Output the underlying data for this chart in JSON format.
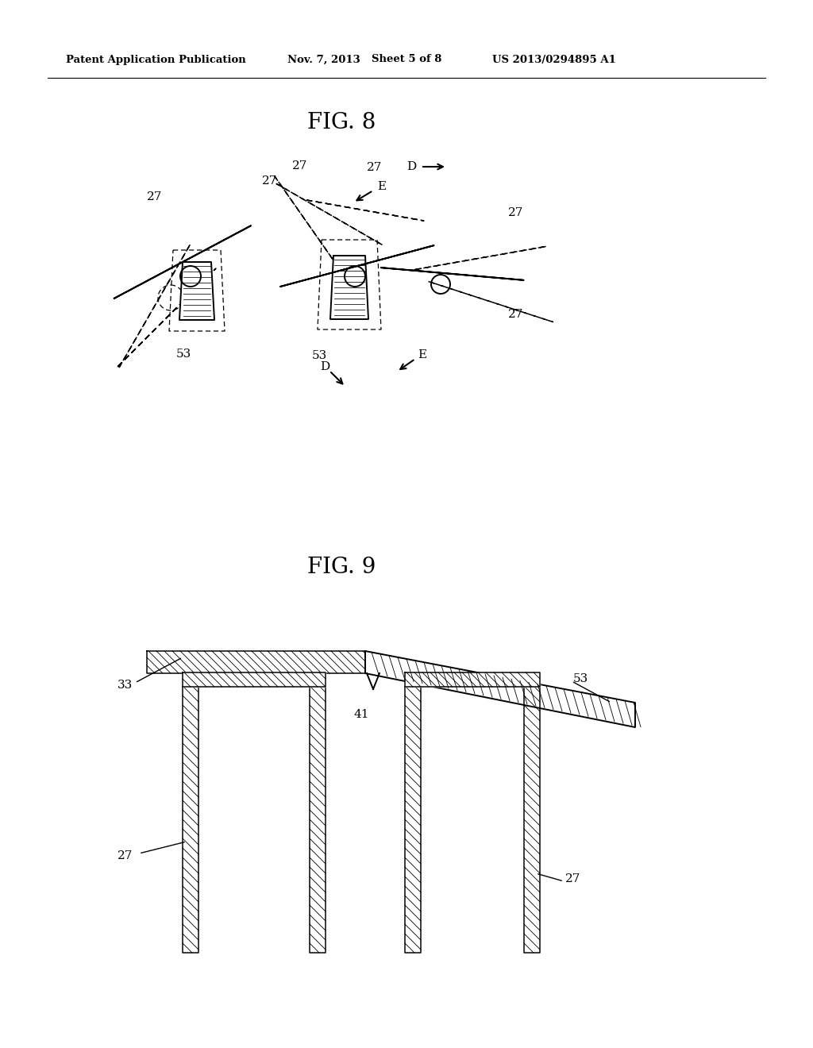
{
  "bg_color": "#ffffff",
  "line_color": "#000000",
  "header_text": "Patent Application Publication",
  "header_date": "Nov. 7, 2013",
  "header_sheet": "Sheet 5 of 8",
  "header_patent": "US 2013/0294895 A1",
  "fig8_title": "FIG. 8",
  "fig9_title": "FIG. 9",
  "fig_width": 10.24,
  "fig_height": 13.2
}
